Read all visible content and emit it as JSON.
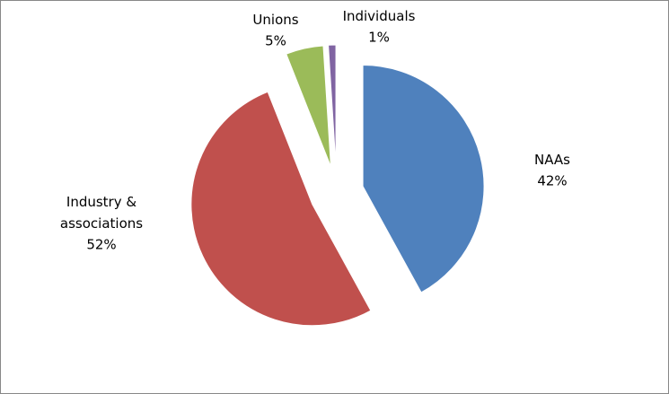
{
  "chart_data": {
    "type": "pie",
    "categories": [
      "NAAs",
      "Industry &\nassociations",
      "Unions",
      "Individuals"
    ],
    "values": [
      42,
      52,
      5,
      1
    ],
    "value_labels": [
      "42%",
      "52%",
      "5%",
      "1%"
    ],
    "colors": [
      "#4f81bd",
      "#c0504d",
      "#9bbb59",
      "#8064a2"
    ]
  }
}
